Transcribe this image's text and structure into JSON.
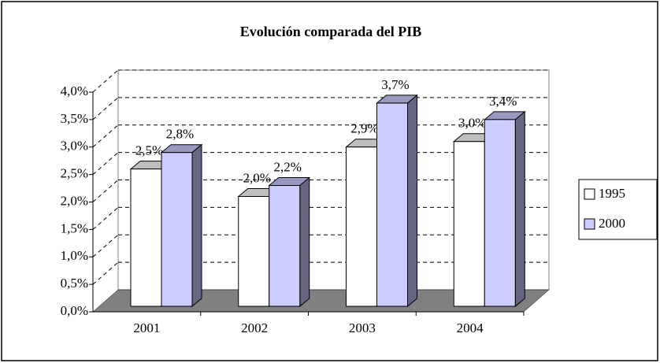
{
  "chart_data": {
    "type": "bar3d",
    "title": "Evolución comparada del PIB",
    "categories": [
      "2001",
      "2002",
      "2003",
      "2004"
    ],
    "series": [
      {
        "name": "1995",
        "color": "#ffffff",
        "values": [
          2.5,
          2.0,
          2.9,
          3.0
        ],
        "value_labels": [
          "2,5%",
          "2,0%",
          "2,9%",
          "3,0%"
        ]
      },
      {
        "name": "2000",
        "color": "#ccccff",
        "values": [
          2.8,
          2.2,
          3.7,
          3.4
        ],
        "value_labels": [
          "2,8%",
          "2,2%",
          "3,7%",
          "3,4%"
        ]
      }
    ],
    "ylim": [
      0,
      4
    ],
    "yticks": [
      {
        "value": 0,
        "label": "0,0%"
      },
      {
        "value": 0.5,
        "label": "0,5%"
      },
      {
        "value": 1,
        "label": "1,0%"
      },
      {
        "value": 1.5,
        "label": "1,5%"
      },
      {
        "value": 2,
        "label": "2,0%"
      },
      {
        "value": 2.5,
        "label": "2,5%"
      },
      {
        "value": 3,
        "label": "3,0%"
      },
      {
        "value": 3.5,
        "label": "3,5%"
      },
      {
        "value": 4,
        "label": "4,0%"
      }
    ],
    "grid": true,
    "legend": "right"
  }
}
